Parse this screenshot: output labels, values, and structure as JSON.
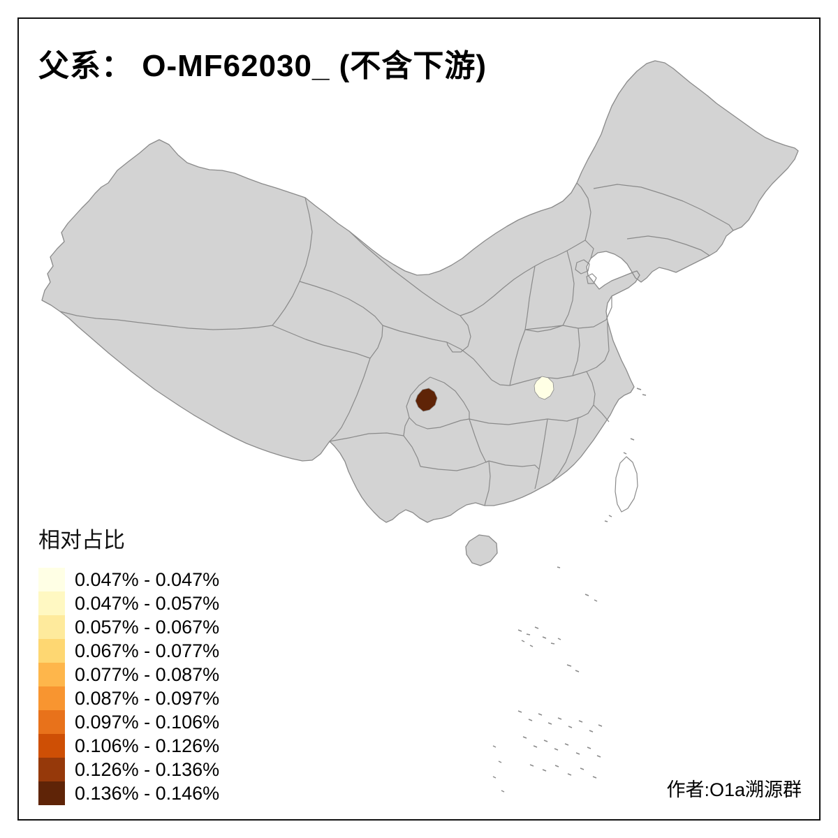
{
  "title": "父系： O-MF62030_ (不含下游)",
  "credit": "作者:O1a溯源群",
  "legend": {
    "title": "相对占比",
    "items": [
      {
        "range": "0.047% - 0.047%",
        "color": "#FFFFE5"
      },
      {
        "range": "0.047% - 0.057%",
        "color": "#FFF8C2"
      },
      {
        "range": "0.057% - 0.067%",
        "color": "#FEEA9C"
      },
      {
        "range": "0.067% - 0.077%",
        "color": "#FED772"
      },
      {
        "range": "0.077% - 0.087%",
        "color": "#FEB64B"
      },
      {
        "range": "0.087% - 0.097%",
        "color": "#F89530"
      },
      {
        "range": "0.097% - 0.106%",
        "color": "#E8721B"
      },
      {
        "range": "0.106% - 0.126%",
        "color": "#CE4F05"
      },
      {
        "range": "0.126% - 0.136%",
        "color": "#96390A"
      },
      {
        "range": "0.136% - 0.146%",
        "color": "#5F2407"
      }
    ]
  },
  "map": {
    "base_fill": "#d3d3d3",
    "border_color": "#8a8a8a",
    "regions": {
      "high": {
        "color": "#5F2407"
      },
      "low": {
        "color": "#FFFFE5"
      }
    }
  }
}
